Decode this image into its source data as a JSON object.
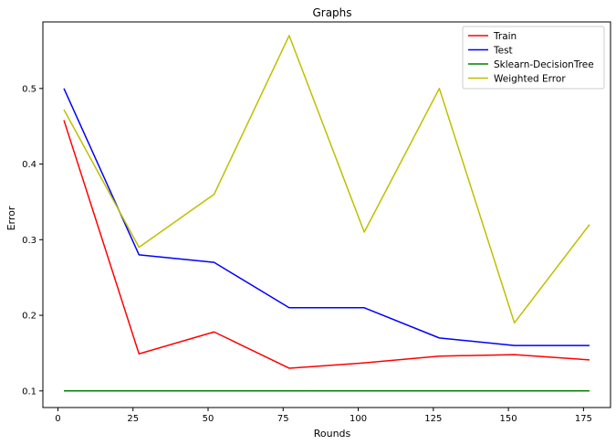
{
  "chart_data": {
    "type": "line",
    "title": "Graphs",
    "xlabel": "Rounds",
    "ylabel": "Error",
    "xlim": [
      -5,
      184
    ],
    "ylim": [
      0.078,
      0.588
    ],
    "xticks": [
      0,
      25,
      50,
      75,
      100,
      125,
      150,
      175
    ],
    "yticks": [
      0.1,
      0.2,
      0.3,
      0.4,
      0.5
    ],
    "x": [
      2,
      27,
      52,
      77,
      102,
      127,
      152,
      177
    ],
    "legend_position": "top-right",
    "grid": false,
    "series": [
      {
        "name": "Train",
        "color": "#ff0000",
        "values": [
          0.458,
          0.149,
          0.178,
          0.13,
          0.137,
          0.146,
          0.148,
          0.141
        ]
      },
      {
        "name": "Test",
        "color": "#0000ff",
        "values": [
          0.5,
          0.28,
          0.27,
          0.21,
          0.21,
          0.17,
          0.16,
          0.16
        ]
      },
      {
        "name": "Sklearn-DecisionTree",
        "color": "#008000",
        "values": [
          0.1,
          0.1,
          0.1,
          0.1,
          0.1,
          0.1,
          0.1,
          0.1
        ]
      },
      {
        "name": "Weighted Error",
        "color": "#bfbf00",
        "values": [
          0.472,
          0.29,
          0.36,
          0.57,
          0.31,
          0.5,
          0.19,
          0.32
        ]
      }
    ]
  }
}
